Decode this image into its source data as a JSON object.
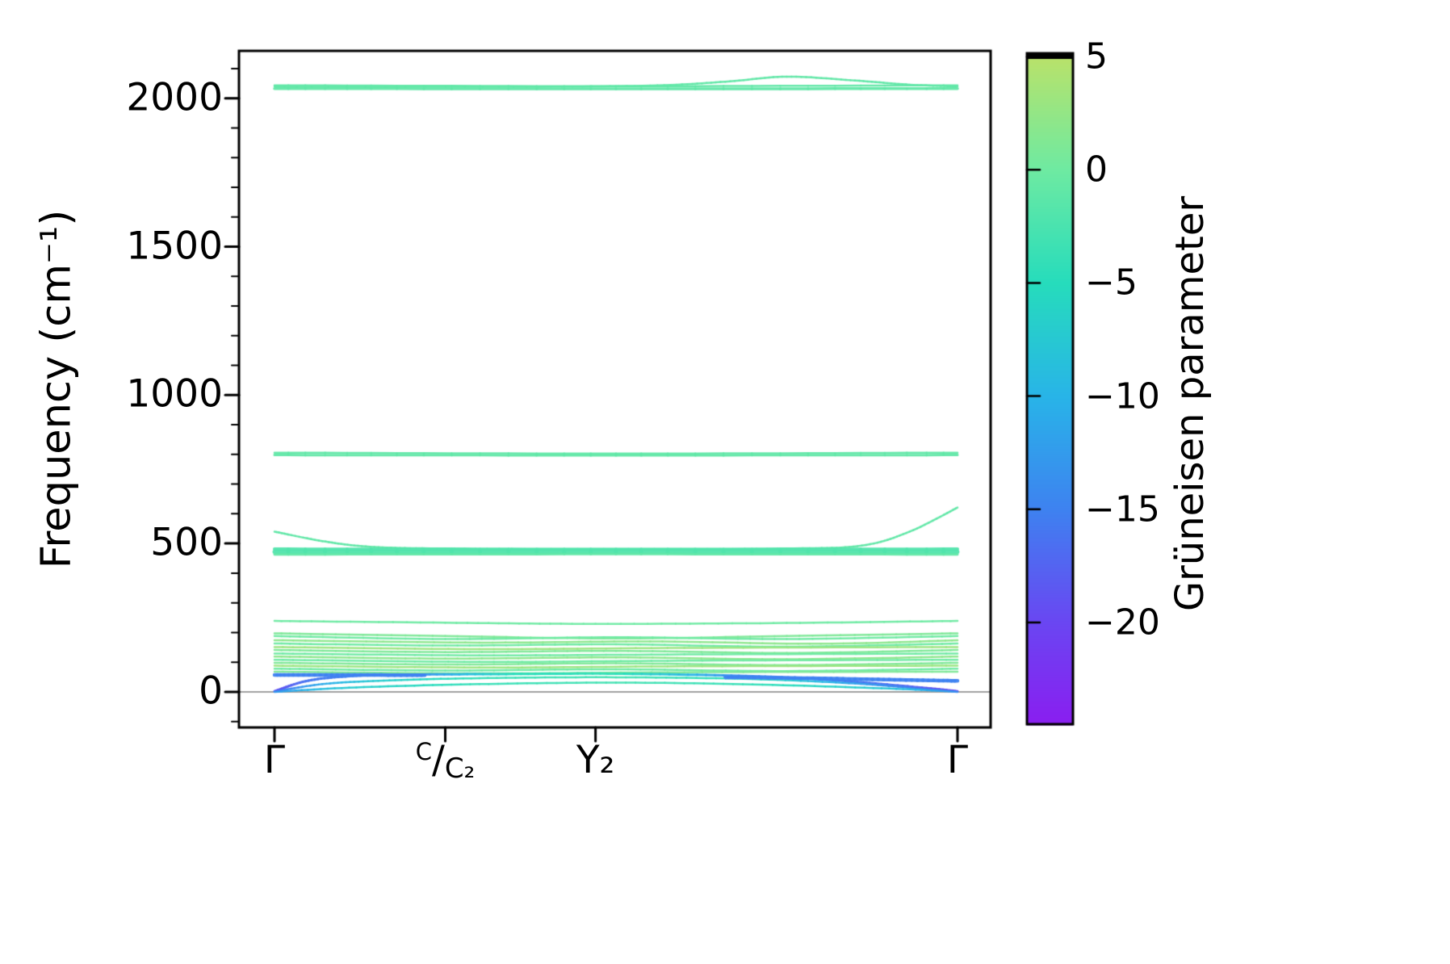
{
  "figure": {
    "background": "#ffffff",
    "line_green": "#6eeaa2",
    "line_blue": "#3e82f0",
    "zero_line_color": "#a0a0a0"
  },
  "chart_data": {
    "type": "line",
    "title": "",
    "xlabel": "",
    "ylabel": "Frequency (cm⁻¹)",
    "ylim": [
      -120,
      2160
    ],
    "x_ticks": [
      {
        "pos": 0.0,
        "label": "Γ"
      },
      {
        "pos": 0.25,
        "label": "C/C₂",
        "parts": {
          "sup": "C",
          "mid": "/",
          "sub": "C₂"
        }
      },
      {
        "pos": 0.47,
        "label": "Y₂"
      },
      {
        "pos": 1.0,
        "label": "Γ"
      }
    ],
    "y_ticks": {
      "major": [
        {
          "value": 0,
          "label": "0"
        },
        {
          "value": 500,
          "label": "500"
        },
        {
          "value": 1000,
          "label": "1000"
        },
        {
          "value": 1500,
          "label": "1500"
        },
        {
          "value": 2000,
          "label": "2000"
        }
      ],
      "minor_step": 100
    },
    "zero_line": {
      "value": 0,
      "color": "#a0a0a0"
    },
    "colorbar": {
      "label": "Grüneisen parameter",
      "vmin": -24.5,
      "vmax": 5.15,
      "ticks": [
        {
          "value": 5,
          "label": "5"
        },
        {
          "value": 0,
          "label": "0"
        },
        {
          "value": -5,
          "label": "−5"
        },
        {
          "value": -10,
          "label": "−10"
        },
        {
          "value": -15,
          "label": "−15"
        },
        {
          "value": -20,
          "label": "−20"
        }
      ],
      "stops": [
        [
          -24.5,
          "#8a1ef0"
        ],
        [
          -20,
          "#6a46f2"
        ],
        [
          -15,
          "#3e82f0"
        ],
        [
          -10,
          "#28b4e8"
        ],
        [
          -5,
          "#26dcbc"
        ],
        [
          0,
          "#6eeaa2"
        ],
        [
          5,
          "#b9e26a"
        ]
      ]
    },
    "bands": [
      {
        "pts": [
          [
            0,
            2033
          ],
          [
            0.5,
            2032
          ],
          [
            1,
            2033
          ]
        ],
        "g": -1,
        "w": 3.5
      },
      {
        "pts": [
          [
            0,
            2040
          ],
          [
            0.35,
            2039
          ],
          [
            0.55,
            2043
          ],
          [
            0.66,
            2056
          ],
          [
            0.75,
            2073
          ],
          [
            0.85,
            2060
          ],
          [
            0.93,
            2046
          ],
          [
            1,
            2040
          ]
        ],
        "g": -1,
        "w": 2.5
      },
      {
        "pts": [
          [
            0,
            2044
          ],
          [
            0.5,
            2041
          ],
          [
            1,
            2044
          ]
        ],
        "g": -1,
        "w": 2.5
      },
      {
        "pts": [
          [
            0,
            798
          ],
          [
            0.5,
            797
          ],
          [
            1,
            798
          ]
        ],
        "g": -1,
        "w": 3
      },
      {
        "pts": [
          [
            0,
            806
          ],
          [
            0.5,
            803
          ],
          [
            1,
            806
          ]
        ],
        "g": -1,
        "w": 2.5
      },
      {
        "pts": [
          [
            0,
            540
          ],
          [
            0.07,
            508
          ],
          [
            0.14,
            489
          ],
          [
            0.25,
            483
          ],
          [
            0.5,
            481
          ],
          [
            0.75,
            483
          ],
          [
            0.86,
            493
          ],
          [
            0.93,
            540
          ],
          [
            1,
            621
          ]
        ],
        "g": -1,
        "w": 2.5
      },
      {
        "pts": [
          [
            0,
            481
          ],
          [
            0.5,
            480
          ],
          [
            1,
            481
          ]
        ],
        "g": -2,
        "w": 4
      },
      {
        "pts": [
          [
            0,
            472
          ],
          [
            0.5,
            471
          ],
          [
            1,
            472
          ]
        ],
        "g": -2,
        "w": 5
      },
      {
        "pts": [
          [
            0,
            463
          ],
          [
            0.5,
            464
          ],
          [
            1,
            463
          ]
        ],
        "g": -1,
        "w": 3
      },
      {
        "pts": [
          [
            0,
            239
          ],
          [
            0.25,
            233
          ],
          [
            0.47,
            229
          ],
          [
            0.75,
            232
          ],
          [
            1,
            239
          ]
        ],
        "g": 0,
        "w": 2.5
      },
      {
        "pts": [
          [
            0,
            197
          ],
          [
            0.25,
            188
          ],
          [
            0.5,
            180
          ],
          [
            0.75,
            188
          ],
          [
            1,
            197
          ]
        ],
        "g": 1,
        "w": 2.5
      },
      {
        "pts": [
          [
            0,
            188
          ],
          [
            0.25,
            178
          ],
          [
            0.5,
            184
          ],
          [
            0.75,
            178
          ],
          [
            1,
            188
          ]
        ],
        "g": 0,
        "w": 2.5
      },
      {
        "pts": [
          [
            0,
            174
          ],
          [
            0.3,
            166
          ],
          [
            0.55,
            170
          ],
          [
            0.8,
            162
          ],
          [
            1,
            174
          ]
        ],
        "g": 2,
        "w": 2.5
      },
      {
        "pts": [
          [
            0,
            163
          ],
          [
            0.25,
            156
          ],
          [
            0.5,
            160
          ],
          [
            0.75,
            152
          ],
          [
            1,
            163
          ]
        ],
        "g": 0,
        "w": 2.5
      },
      {
        "pts": [
          [
            0,
            151
          ],
          [
            0.3,
            144
          ],
          [
            0.6,
            148
          ],
          [
            1,
            151
          ]
        ],
        "g": 3,
        "w": 2.5
      },
      {
        "pts": [
          [
            0,
            141
          ],
          [
            0.25,
            134
          ],
          [
            0.5,
            138
          ],
          [
            0.75,
            131
          ],
          [
            1,
            141
          ]
        ],
        "g": 1,
        "w": 2.5
      },
      {
        "pts": [
          [
            0,
            129
          ],
          [
            0.3,
            123
          ],
          [
            0.6,
            126
          ],
          [
            1,
            129
          ]
        ],
        "g": 0,
        "w": 2.5
      },
      {
        "pts": [
          [
            0,
            119
          ],
          [
            0.25,
            112
          ],
          [
            0.5,
            116
          ],
          [
            0.75,
            110
          ],
          [
            1,
            119
          ]
        ],
        "g": 2,
        "w": 2.5
      },
      {
        "pts": [
          [
            0,
            108
          ],
          [
            0.3,
            101
          ],
          [
            0.6,
            105
          ],
          [
            1,
            108
          ]
        ],
        "g": 0,
        "w": 2.5
      },
      {
        "pts": [
          [
            0,
            98
          ],
          [
            0.25,
            92
          ],
          [
            0.5,
            96
          ],
          [
            0.75,
            90
          ],
          [
            1,
            98
          ]
        ],
        "g": 1,
        "w": 2.5
      },
      {
        "pts": [
          [
            0,
            88
          ],
          [
            0.3,
            82
          ],
          [
            0.6,
            86
          ],
          [
            1,
            88
          ]
        ],
        "g": 3,
        "w": 2.5
      },
      {
        "pts": [
          [
            0,
            78
          ],
          [
            0.25,
            72
          ],
          [
            0.5,
            76
          ],
          [
            0.75,
            70
          ],
          [
            1,
            78
          ]
        ],
        "g": 0,
        "w": 2.5
      },
      {
        "pts": [
          [
            0,
            68
          ],
          [
            0.3,
            62
          ],
          [
            0.6,
            66
          ],
          [
            1,
            68
          ]
        ],
        "g": 1,
        "w": 2.5
      },
      {
        "pts": [
          [
            0,
            2
          ],
          [
            0.05,
            38
          ],
          [
            0.12,
            54
          ],
          [
            0.2,
            58
          ],
          [
            0.35,
            60
          ],
          [
            0.5,
            61
          ],
          [
            0.68,
            54
          ],
          [
            0.8,
            42
          ],
          [
            0.92,
            20
          ],
          [
            1,
            2
          ]
        ],
        "g": [
          -20,
          -16,
          -15,
          -15,
          -5,
          -4,
          -14,
          -15,
          -17,
          -21
        ],
        "w": 3
      },
      {
        "pts": [
          [
            0,
            1
          ],
          [
            0.07,
            26
          ],
          [
            0.16,
            38
          ],
          [
            0.3,
            46
          ],
          [
            0.5,
            49
          ],
          [
            0.7,
            43
          ],
          [
            0.85,
            28
          ],
          [
            0.95,
            10
          ],
          [
            1,
            1
          ]
        ],
        "g": [
          -17,
          -11,
          -7,
          -4,
          -3,
          -5,
          -12,
          -16,
          -19
        ],
        "w": 2.5
      },
      {
        "pts": [
          [
            0,
            0
          ],
          [
            0.12,
            15
          ],
          [
            0.3,
            26
          ],
          [
            0.5,
            31
          ],
          [
            0.7,
            25
          ],
          [
            0.9,
            11
          ],
          [
            1,
            0
          ]
        ],
        "g": [
          -13,
          -7,
          -4,
          -3,
          -4,
          -8,
          -14
        ],
        "w": 2.5
      },
      {
        "pts": [
          [
            0,
            57
          ],
          [
            0.1,
            57
          ],
          [
            0.22,
            56
          ]
        ],
        "g": -15,
        "w": 4.5
      },
      {
        "pts": [
          [
            0.66,
            49
          ],
          [
            0.78,
            46
          ],
          [
            0.9,
            41
          ],
          [
            1,
            37
          ]
        ],
        "g": -15,
        "w": 4.5
      }
    ]
  }
}
